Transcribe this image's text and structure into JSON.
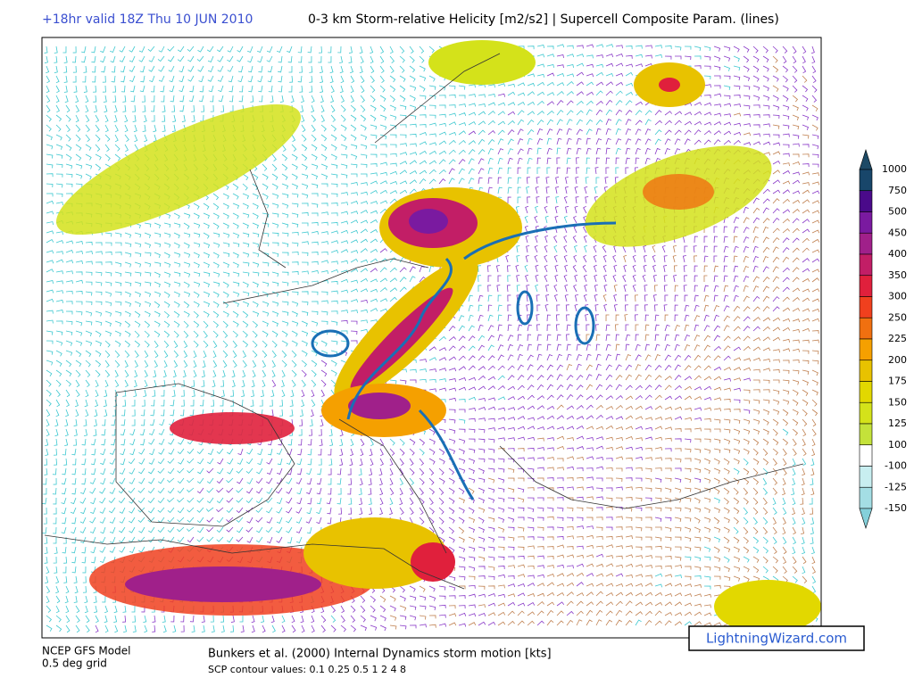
{
  "header": {
    "valid": "+18hr valid 18Z Thu 10 JUN 2010",
    "title": "0-3 km Storm-relative Helicity [m2/s2] | Supercell Composite Param. (lines)"
  },
  "colorbar": {
    "labels": [
      "1000",
      "750",
      "500",
      "450",
      "400",
      "350",
      "300",
      "250",
      "225",
      "200",
      "175",
      "150",
      "125",
      "100",
      "-100",
      "-125",
      "-150"
    ],
    "colors": [
      "#1d4a66",
      "#18466a",
      "#4a0a8a",
      "#7a1aa0",
      "#a0208a",
      "#c21e66",
      "#e0203c",
      "#f0401e",
      "#f07010",
      "#f5a000",
      "#e8c200",
      "#e2d800",
      "#d4e21a",
      "#c4e23a",
      "#ffffff",
      "#c8eef0",
      "#a4dee4",
      "#84d0da"
    ]
  },
  "footer": {
    "model": "NCEP GFS Model",
    "grid": "0.5 deg grid",
    "motion": "Bunkers et al. (2000) Internal Dynamics storm motion [kts]",
    "contours": "SCP contour values: 0.1 0.25 0.5 1 2 4 8",
    "credit": "LightningWizard.com"
  }
}
